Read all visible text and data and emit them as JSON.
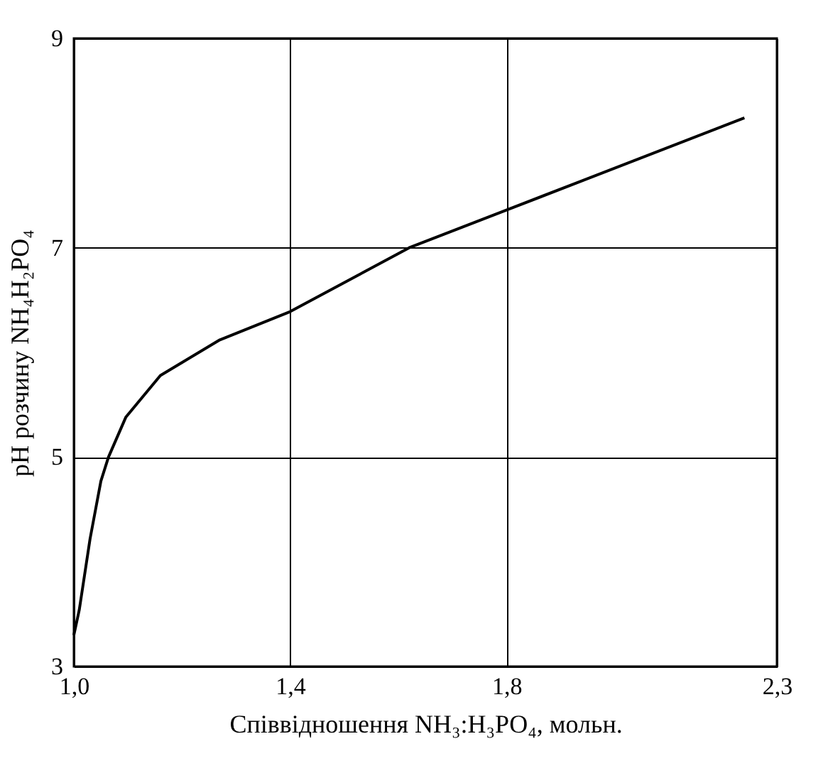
{
  "chart_data": {
    "type": "line",
    "xlabel": "Співвідношення NH₃:H₃PO₄, мольн.",
    "ylabel": "pH розчину NH₄H₂PO₄",
    "x": [
      1.0,
      1.01,
      1.03,
      1.05,
      1.064,
      1.096,
      1.16,
      1.27,
      1.4,
      1.62,
      1.8,
      2.24
    ],
    "series": [
      {
        "color": "#000000",
        "values": [
          3.3,
          3.54,
          4.22,
          4.77,
          5.0,
          5.38,
          5.78,
          6.12,
          6.39,
          7.0,
          7.36,
          8.24
        ]
      }
    ],
    "xlim": [
      1.0,
      2.3
    ],
    "xticks": [
      {
        "value": 1.0,
        "label": "1,0"
      },
      {
        "value": 1.4,
        "label": "1,4"
      },
      {
        "value": 1.8,
        "label": "1,8"
      },
      {
        "value": 2.3,
        "label": "2,3"
      }
    ],
    "ylim": [
      3,
      9
    ],
    "yticks": [
      3,
      5,
      7,
      9
    ],
    "grid": true,
    "line_style": "solid"
  }
}
